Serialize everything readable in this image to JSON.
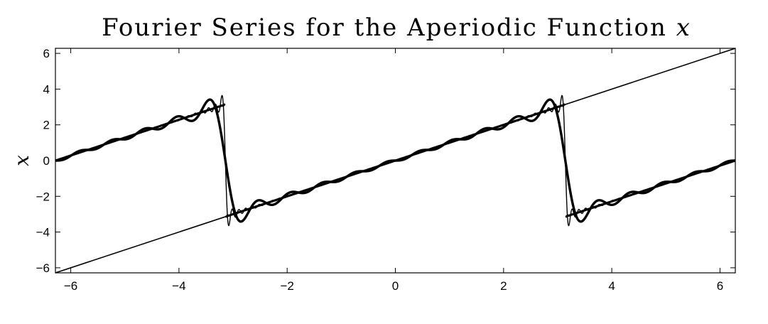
{
  "chart_data": {
    "type": "line",
    "title": "Fourier Series for the Aperiodic Function",
    "title_var": "x",
    "xlabel": "",
    "ylabel": "x",
    "xlim": [
      -6.2832,
      6.2832
    ],
    "ylim": [
      -6.2832,
      6.2832
    ],
    "xticks": [
      -6,
      -4,
      -2,
      0,
      2,
      4,
      6
    ],
    "xtick_labels": [
      "−6",
      "−4",
      "−2",
      "0",
      "2",
      "4",
      "6"
    ],
    "yticks": [
      -6,
      -4,
      -2,
      0,
      2,
      4,
      6
    ],
    "ytick_labels": [
      "−6",
      "−4",
      "−2",
      "0",
      "2",
      "4",
      "6"
    ],
    "grid": false,
    "legend": "none",
    "series": [
      {
        "style": "thin-solid",
        "function": "y = x",
        "x": [
          -6.2832,
          6.2832
        ],
        "y": [
          -6.2832,
          6.2832
        ]
      },
      {
        "style": "thick-solid",
        "function": "Fourier partial sum of period-2π sawtooth of x, 10 terms",
        "terms": 10,
        "x_range": [
          -6.2832,
          6.2832
        ]
      },
      {
        "style": "thin-solid",
        "function": "Fourier partial sum of period-2π sawtooth of x, 50 terms",
        "terms": 50,
        "x_range": [
          -6.2832,
          6.2832
        ]
      },
      {
        "style": "dotted",
        "function": "Fourier sum of period-2π sawtooth of x, 200 terms with σ-smoothing",
        "terms": 200,
        "x_range": [
          -6.2832,
          6.2832
        ]
      }
    ],
    "colors": {
      "lines": "#000000",
      "background": "#ffffff"
    }
  }
}
